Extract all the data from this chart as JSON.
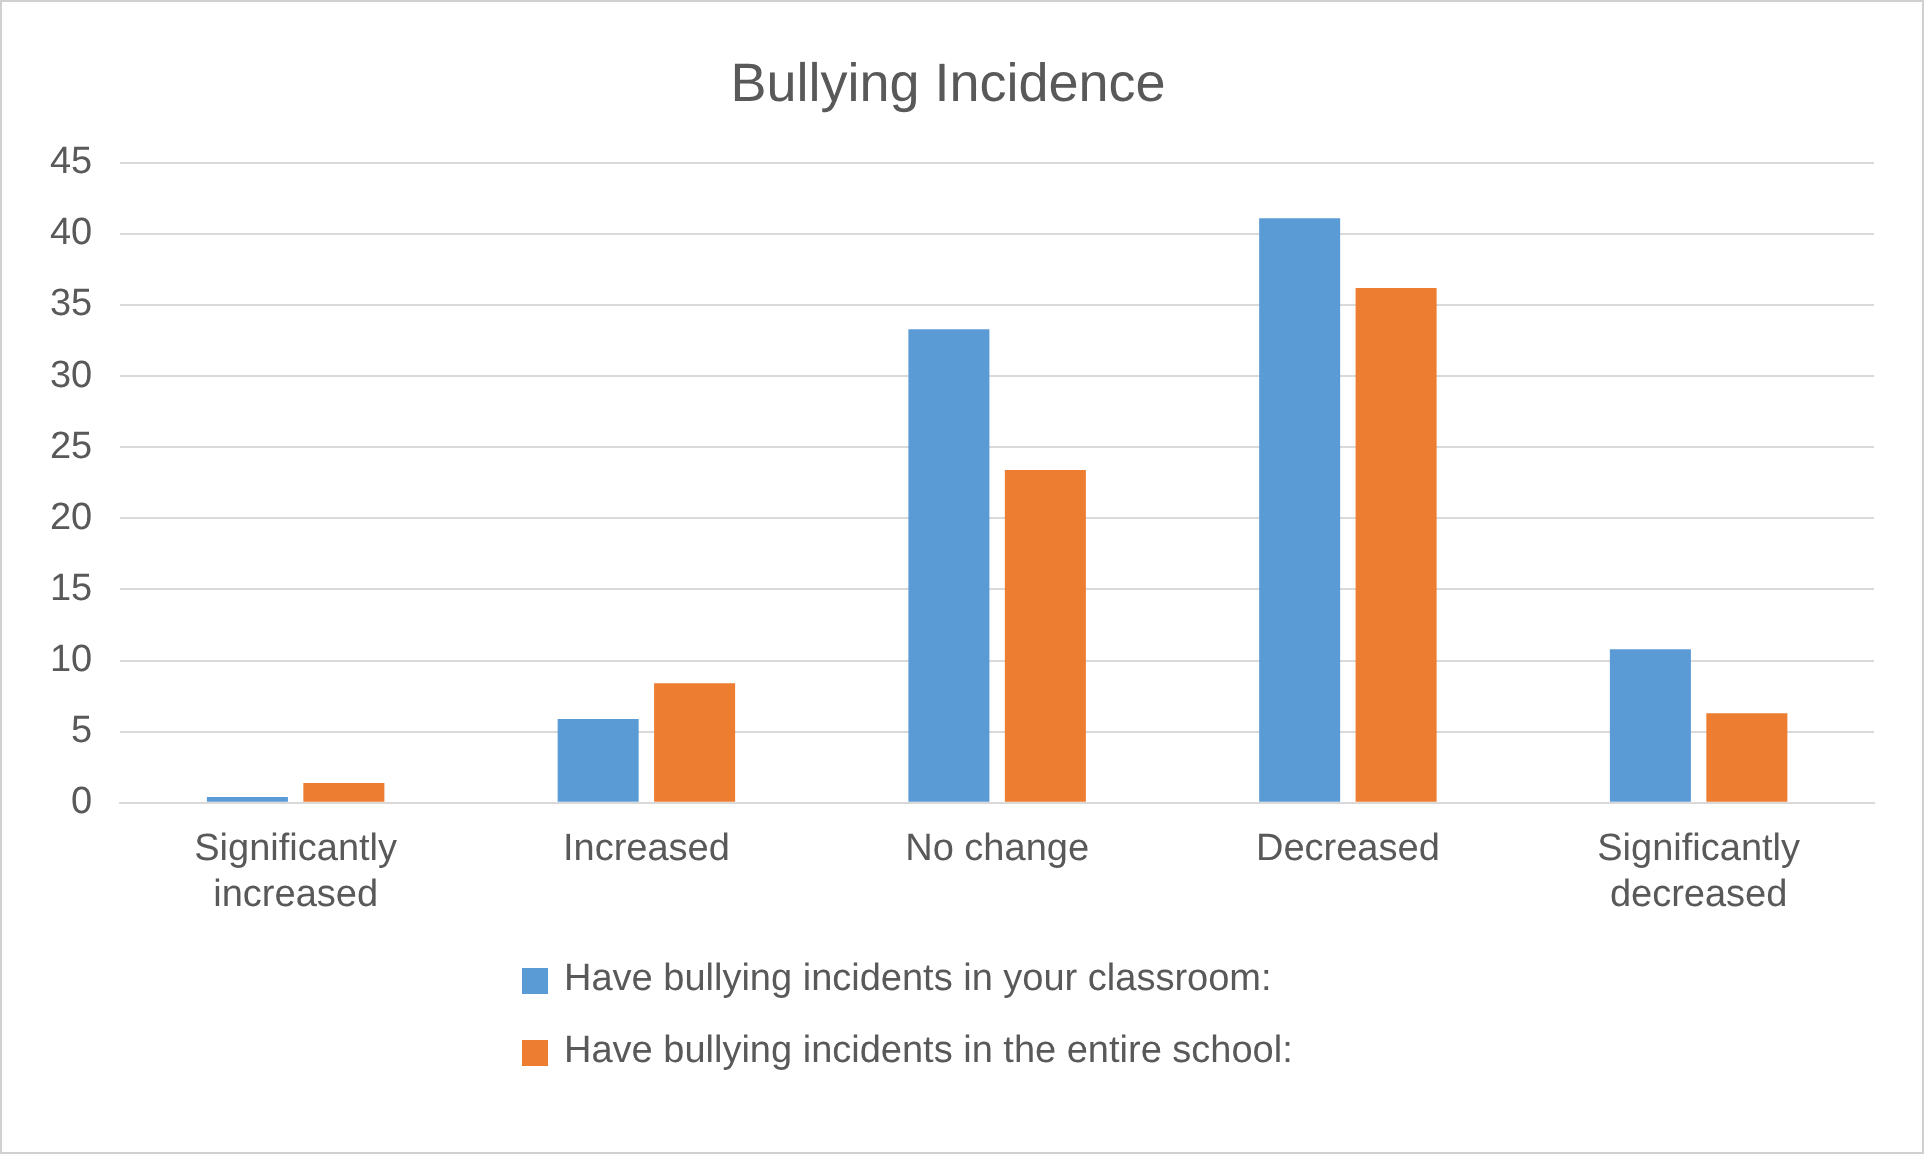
{
  "chart_data": {
    "type": "bar",
    "title": "Bullying Incidence",
    "categories": [
      "Significantly increased",
      "Increased",
      "No change",
      "Decreased",
      "Significantly decreased"
    ],
    "series": [
      {
        "name": "Have bullying incidents in your classroom:",
        "color": "#5b9bd5",
        "values": [
          0.4,
          5.9,
          33.3,
          41.1,
          10.8
        ]
      },
      {
        "name": "Have bullying incidents in the entire school:",
        "color": "#ed7d31",
        "values": [
          1.4,
          8.4,
          23.4,
          36.2,
          6.3
        ]
      }
    ],
    "ylim": [
      0,
      45
    ],
    "yticks": [
      0,
      5,
      10,
      15,
      20,
      25,
      30,
      35,
      40,
      45
    ],
    "grid": "y",
    "legend": "bottom"
  }
}
